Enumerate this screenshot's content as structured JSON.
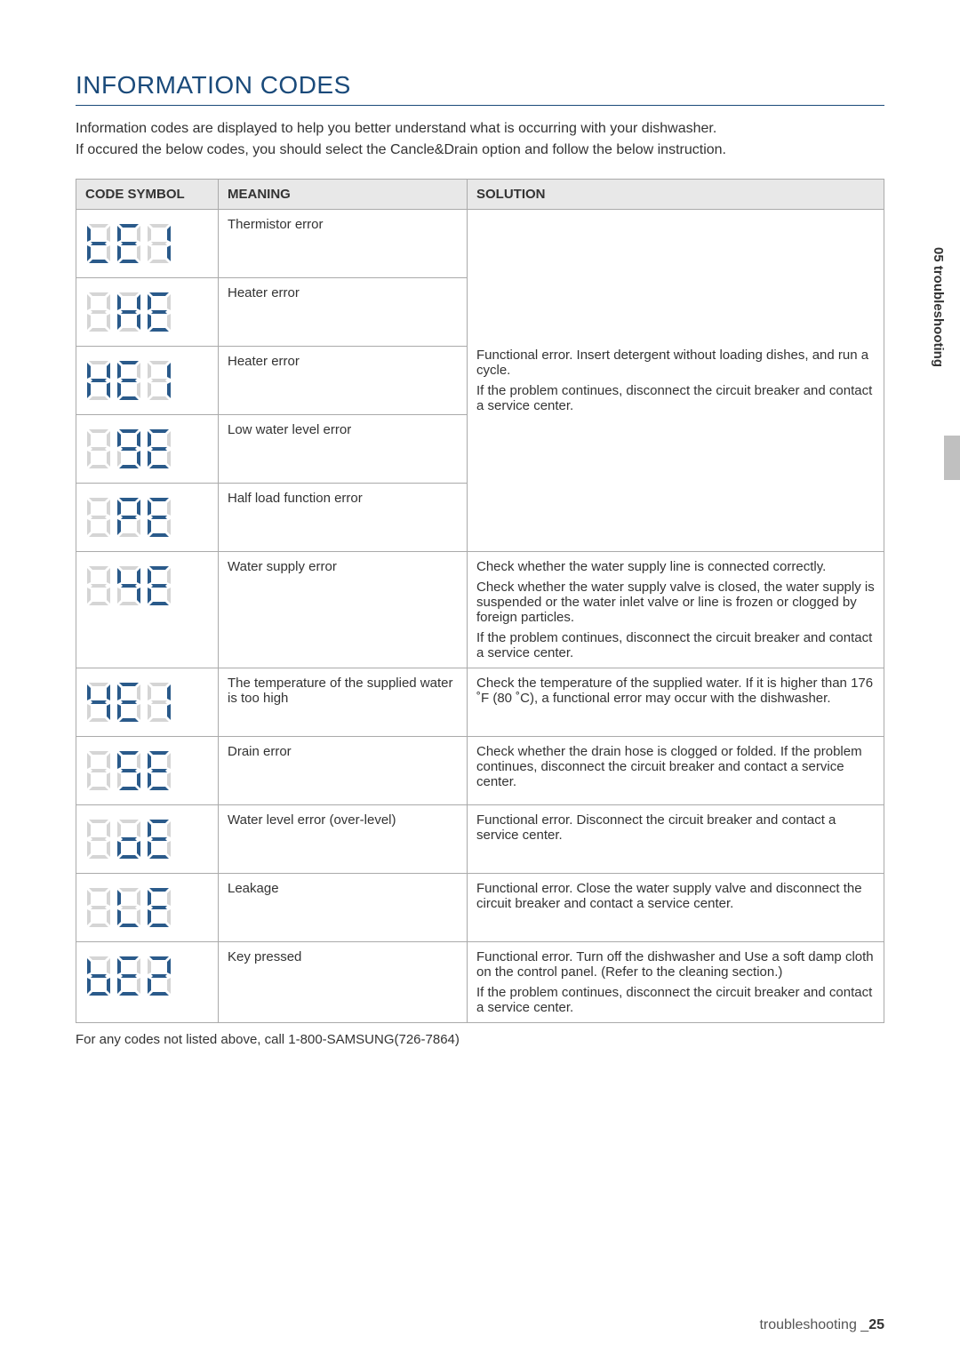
{
  "heading": "INFORMATION CODES",
  "intro_line1": "Information codes are displayed to help you better understand what is occurring with your dishwasher.",
  "intro_line2": "If occured the below codes, you should select the Cancle&Drain option and follow the below instruction.",
  "columns": {
    "symbol": "CODE SYMBOL",
    "meaning": "MEANING",
    "solution": "SOLUTION"
  },
  "shared_solution": "Functional error. Insert detergent without loading dishes, and run a cycle.\nIf the problem continues, disconnect the circuit breaker and contact a service center.",
  "rows_group1": [
    {
      "code": "tE1",
      "meaning": "Thermistor error"
    },
    {
      "code": " HE",
      "meaning": "Heater error"
    },
    {
      "code": "HE1",
      "meaning": "Heater error"
    },
    {
      "code": " 9E",
      "meaning": "Low water level error"
    },
    {
      "code": " PE",
      "meaning": "Half load function error"
    }
  ],
  "rows_group2": [
    {
      "code": " 4E",
      "meaning": "Water supply error",
      "solution": "Check whether the water supply line is connected correctly.\nCheck whether the water supply valve is closed, the water supply is suspended or the water inlet valve or line is frozen or clogged by foreign particles.\nIf the problem continues, disconnect the circuit breaker and contact a service center."
    },
    {
      "code": "4E1",
      "meaning": "The temperature of the supplied water is too high",
      "solution": "Check the temperature of the supplied water. If it is higher than 176 ˚F (80 ˚C), a functional error may occur with the dishwasher."
    },
    {
      "code": " 5E",
      "meaning": "Drain error",
      "solution": "Check whether the drain hose is clogged or folded. If the problem continues, disconnect the circuit breaker and contact a service center."
    },
    {
      "code": " oE",
      "meaning": "Water level error (over-level)",
      "solution": "Functional error. Disconnect the circuit breaker and contact a service center."
    },
    {
      "code": " LE",
      "meaning": "Leakage",
      "solution": "Functional error. Close the water supply valve and disconnect the circuit breaker and contact a service center."
    },
    {
      "code": "bE2",
      "meaning": "Key pressed",
      "solution": "Functional error. Turn off the dishwasher and Use a soft damp cloth on the control panel. (Refer to the cleaning section.)\nIf the problem continues, disconnect the circuit breaker and contact a service center."
    }
  ],
  "footer_note": "For any codes not listed above, call 1-800-SAMSUNG(726-7864)",
  "side_tab": "05 troubleshooting",
  "page_footer_label": "troubleshooting _",
  "page_number": "25",
  "colors": {
    "heading": "#1a4a7a",
    "segment_active": "#2a5a8a",
    "segment_dim": "#d5d5d5",
    "border": "#aaaaaa",
    "header_bg": "#e8e8e8"
  }
}
